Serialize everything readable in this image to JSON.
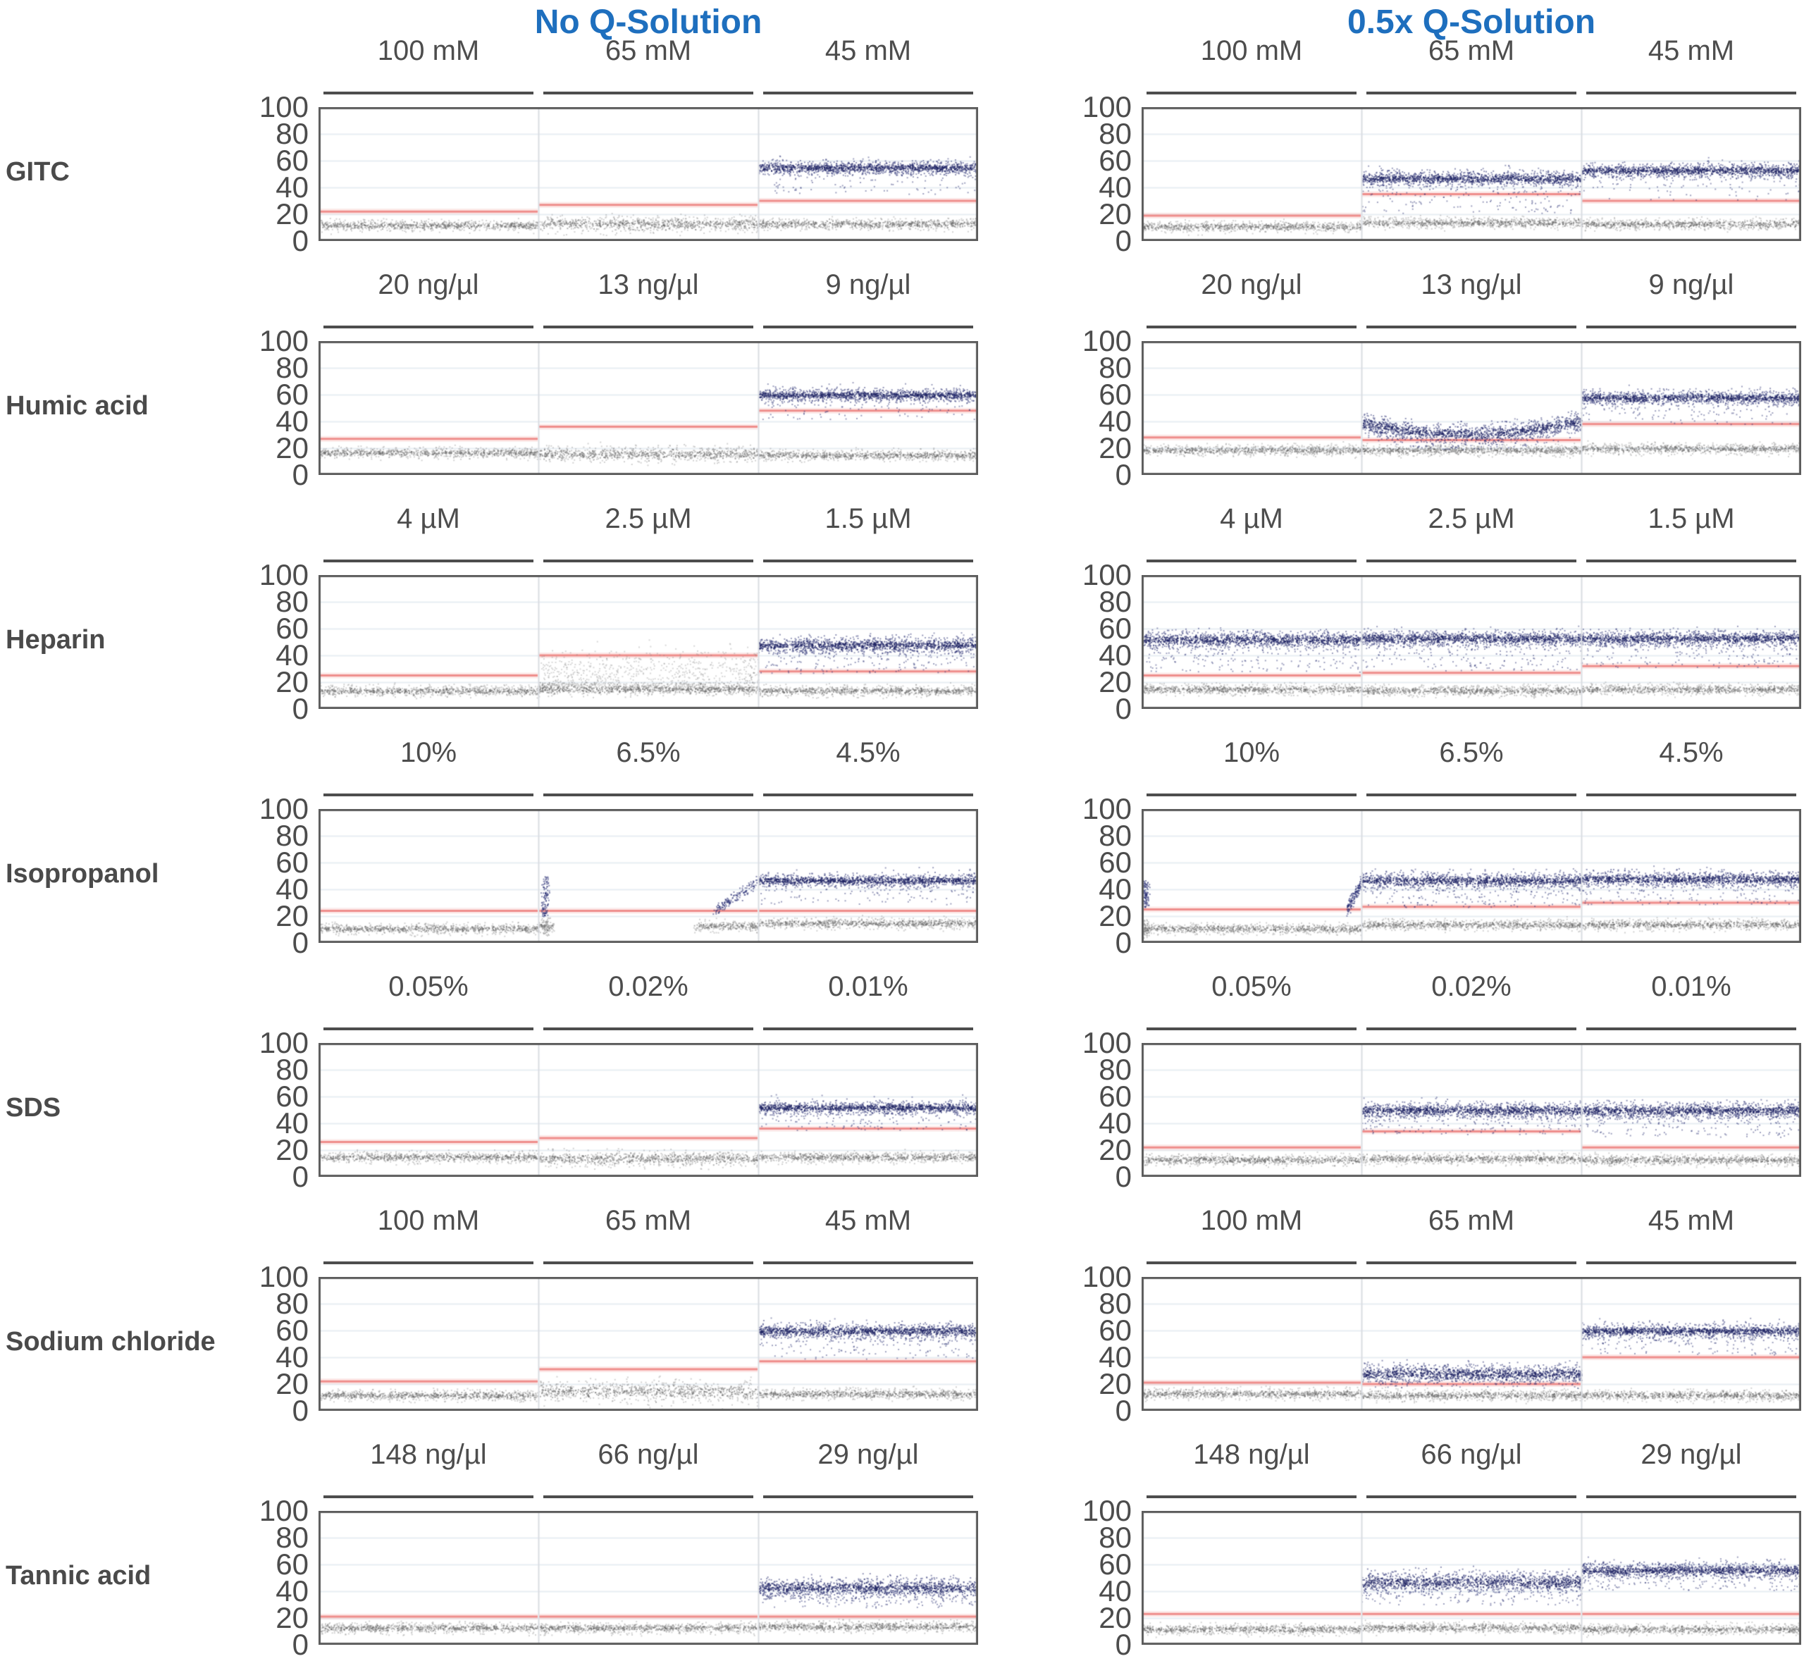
{
  "chart_data": {
    "type": "scatter",
    "description": "Real-time PCR amplification scatter plots (cycles vs fluorescence position 0-100) comparing inhibitor tolerance without and with 0.5x Q-Solution. Each panel shows a gray baseline dot band, a salmon threshold line, and a dark blue amplification signal band when amplification occurs.",
    "column_titles": [
      "No Q-Solution",
      "0.5x Q-Solution"
    ],
    "axis": {
      "ylim": [
        0,
        100
      ],
      "yticks": [
        100,
        80,
        60,
        40,
        20,
        0
      ]
    },
    "series_legend": {
      "signal_color": "#2a3073",
      "baseline_color": "#8a8a8a",
      "threshold_color": "#ef8e8c",
      "title_color": "#1e6fbe"
    },
    "rows": [
      {
        "label": "GITC",
        "concentrations": [
          "100 mM",
          "65 mM",
          "45 mM"
        ],
        "groups": [
          {
            "panels": [
              {
                "threshold": 22,
                "baseline": 12,
                "signal": null
              },
              {
                "threshold": 27,
                "baseline": 13,
                "baseline_noise": 1.6,
                "signal": null
              },
              {
                "threshold": 30,
                "baseline": 13,
                "signal": 55,
                "signal_noise": 2.6,
                "tail_frac": 0.08,
                "tail_depth": 16
              }
            ]
          },
          {
            "panels": [
              {
                "threshold": 19,
                "baseline": 11,
                "signal": null
              },
              {
                "threshold": 35,
                "baseline": 14,
                "signal": 47,
                "signal_noise": 2.9,
                "tail_frac": 0.13,
                "tail_depth": 22
              },
              {
                "threshold": 30,
                "baseline": 13,
                "signal": 53,
                "signal_noise": 2.7,
                "tail_frac": 0.08,
                "tail_depth": 18
              }
            ]
          }
        ]
      },
      {
        "label": "Humic acid",
        "concentrations": [
          "20 ng/µl",
          "13 ng/µl",
          "9 ng/µl"
        ],
        "groups": [
          {
            "panels": [
              {
                "threshold": 27,
                "baseline": 17,
                "signal": null
              },
              {
                "threshold": 36,
                "baseline": 16,
                "baseline_noise": 1.6,
                "signal": null
              },
              {
                "threshold": 48,
                "baseline": 15,
                "signal": 60,
                "signal_noise": 2.4,
                "tail_frac": 0.08,
                "tail_depth": 14
              }
            ]
          },
          {
            "panels": [
              {
                "threshold": 28,
                "baseline": 19,
                "signal": null
              },
              {
                "threshold": 26,
                "baseline": 19,
                "signal_curve": [
                  39,
                  31,
                  41
                ],
                "signal_noise": 3.8,
                "tail_frac": 0.1,
                "tail_depth": 8
              },
              {
                "threshold": 38,
                "baseline": 20,
                "signal": 58,
                "signal_noise": 2.7,
                "tail_frac": 0.09,
                "tail_depth": 16
              }
            ]
          }
        ]
      },
      {
        "label": "Heparin",
        "concentrations": [
          "4 µM",
          "2.5 µM",
          "1.5 µM"
        ],
        "groups": [
          {
            "panels": [
              {
                "threshold": 25,
                "baseline": 14,
                "signal": null
              },
              {
                "threshold": 40,
                "baseline": 15,
                "baseline_cloud": {
                  "center": 23,
                  "spread": 5
                },
                "signal": null
              },
              {
                "threshold": 28,
                "baseline": 14,
                "signal": 48,
                "signal_noise": 3.1,
                "tail_frac": 0.15,
                "tail_depth": 17
              }
            ]
          },
          {
            "panels": [
              {
                "threshold": 25,
                "baseline": 15,
                "signal": 52,
                "signal_noise": 3.3,
                "tail_frac": 0.15,
                "tail_depth": 20
              },
              {
                "threshold": 27,
                "baseline": 14,
                "signal": 53,
                "signal_noise": 3.1,
                "tail_frac": 0.14,
                "tail_depth": 20
              },
              {
                "threshold": 32,
                "baseline": 15,
                "signal": 53,
                "signal_noise": 3.0,
                "tail_frac": 0.14,
                "tail_depth": 18
              }
            ]
          }
        ]
      },
      {
        "label": "Isopropanol",
        "concentrations": [
          "10%",
          "6.5%",
          "4.5%"
        ],
        "groups": [
          {
            "panels": [
              {
                "threshold": 24,
                "baseline": 11,
                "signal": null
              },
              {
                "threshold": 24,
                "baseline": 13,
                "baseline_gaps": [
                  [
                    0.07,
                    0.7
                  ]
                ],
                "signal": null,
                "features": [
                  {
                    "type": "spike",
                    "x": 0.03,
                    "y0": 20,
                    "y1": 50
                  },
                  {
                    "type": "ramp",
                    "x0": 0.8,
                    "x1": 0.99,
                    "y0": 24,
                    "y1": 46
                  }
                ]
              },
              {
                "threshold": 24,
                "baseline": 15,
                "signal": 47,
                "signal_noise": 2.4,
                "tail_frac": 0.09,
                "tail_depth": 14
              }
            ]
          },
          {
            "panels": [
              {
                "threshold": 25,
                "baseline": 11,
                "signal": null,
                "features": [
                  {
                    "type": "spike",
                    "x": 0.015,
                    "y0": 27,
                    "y1": 47
                  },
                  {
                    "type": "ramp",
                    "x0": 0.93,
                    "x1": 1.0,
                    "y0": 25,
                    "y1": 46
                  }
                ]
              },
              {
                "threshold": 27,
                "baseline": 14,
                "signal": 47,
                "signal_noise": 3.1,
                "tail_frac": 0.13,
                "tail_depth": 16
              },
              {
                "threshold": 30,
                "baseline": 14,
                "signal": 48,
                "signal_noise": 2.9,
                "tail_frac": 0.11,
                "tail_depth": 15
              }
            ]
          }
        ]
      },
      {
        "label": "SDS",
        "concentrations": [
          "0.05%",
          "0.02%",
          "0.01%"
        ],
        "groups": [
          {
            "panels": [
              {
                "threshold": 26,
                "baseline": 15,
                "signal": null
              },
              {
                "threshold": 29,
                "baseline": 14,
                "baseline_noise": 1.6,
                "signal": null
              },
              {
                "threshold": 36,
                "baseline": 15,
                "signal": 52,
                "signal_noise": 2.4,
                "tail_frac": 0.09,
                "tail_depth": 13
              }
            ]
          },
          {
            "panels": [
              {
                "threshold": 22,
                "baseline": 13,
                "signal": null
              },
              {
                "threshold": 34,
                "baseline": 14,
                "signal": 50,
                "signal_noise": 3.1,
                "tail_frac": 0.13,
                "tail_depth": 14
              },
              {
                "threshold": 22,
                "baseline": 13,
                "signal": 50,
                "signal_noise": 3.1,
                "tail_frac": 0.13,
                "tail_depth": 16
              }
            ]
          }
        ]
      },
      {
        "label": "Sodium chloride",
        "concentrations": [
          "100 mM",
          "65 mM",
          "45 mM"
        ],
        "groups": [
          {
            "panels": [
              {
                "threshold": 22,
                "baseline": 12,
                "signal": null
              },
              {
                "threshold": 31,
                "baseline": 15,
                "baseline_noise": 2.2,
                "signal": null
              },
              {
                "threshold": 37,
                "baseline": 13,
                "signal": 60,
                "signal_noise": 3.1,
                "tail_frac": 0.11,
                "tail_depth": 17
              }
            ]
          },
          {
            "panels": [
              {
                "threshold": 21,
                "baseline": 13,
                "signal": null
              },
              {
                "threshold": 20,
                "baseline": 12,
                "signal": 28,
                "signal_noise": 4.0,
                "tail_frac": 0.05,
                "tail_depth": 6
              },
              {
                "threshold": 40,
                "baseline": 12,
                "signal": 60,
                "signal_noise": 2.7,
                "tail_frac": 0.1,
                "tail_depth": 14
              }
            ]
          }
        ]
      },
      {
        "label": "Tannic acid",
        "concentrations": [
          "148 ng/µl",
          "66 ng/µl",
          "29 ng/µl"
        ],
        "groups": [
          {
            "panels": [
              {
                "threshold": 21,
                "baseline": 13,
                "signal": null
              },
              {
                "threshold": 21,
                "baseline": 13,
                "signal": null
              },
              {
                "threshold": 21,
                "baseline": 14,
                "signal": 43,
                "signal_noise": 4.0,
                "tail_frac": 0.11,
                "tail_depth": 11
              }
            ]
          },
          {
            "panels": [
              {
                "threshold": 23,
                "baseline": 12,
                "signal": null
              },
              {
                "threshold": 23,
                "baseline": 13,
                "signal": 47,
                "signal_noise": 4.3,
                "tail_frac": 0.11,
                "tail_depth": 13
              },
              {
                "threshold": 23,
                "baseline": 12,
                "signal": 56,
                "signal_noise": 2.9,
                "tail_frac": 0.11,
                "tail_depth": 11
              }
            ]
          }
        ]
      }
    ]
  }
}
